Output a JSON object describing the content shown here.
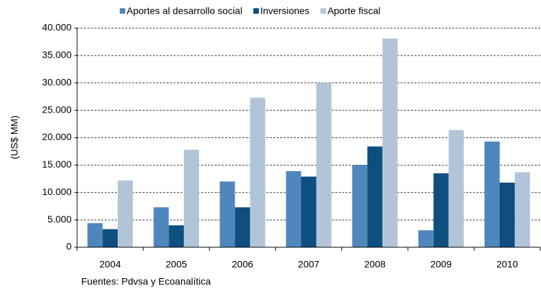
{
  "chart_data": {
    "type": "bar",
    "categories": [
      "2004",
      "2005",
      "2006",
      "2007",
      "2008",
      "2009",
      "2010"
    ],
    "series": [
      {
        "name": "Aportes al desarrollo social",
        "color": "#4f86bb",
        "values": [
          4400,
          7300,
          12000,
          13900,
          15000,
          3100,
          19300
        ]
      },
      {
        "name": "Inversiones",
        "color": "#0e4f80",
        "values": [
          3300,
          4000,
          7300,
          12900,
          18400,
          13500,
          11800
        ]
      },
      {
        "name": "Aporte fiscal",
        "color": "#b2c5d8",
        "values": [
          12200,
          17800,
          27300,
          30000,
          38100,
          21400,
          13700
        ]
      }
    ],
    "y_label": "(US$ MM)",
    "source": "Fuentes: Pdvsa y Ecoanalítica",
    "ylim": [
      0,
      40000
    ],
    "yticks": [
      0,
      {
        "value": 5000,
        "label": "5.000"
      },
      {
        "value": 10000,
        "label": "10.000"
      },
      {
        "value": 15000,
        "label": "15.000"
      },
      {
        "value": 20000,
        "label": "20.000"
      },
      {
        "value": 25000,
        "label": "25.000"
      },
      {
        "value": 30000,
        "label": "30.000"
      },
      {
        "value": 35000,
        "label": "35.000"
      },
      {
        "value": 40000,
        "label": "40.000"
      }
    ],
    "grid": true,
    "legend": "top"
  }
}
